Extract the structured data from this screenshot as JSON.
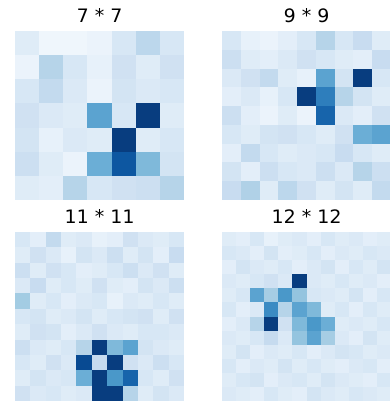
{
  "chart_data": [
    {
      "type": "heatmap",
      "title": "7 * 7",
      "colormap": "Blues",
      "values": [
        [
          0.12,
          0.04,
          0.04,
          0.06,
          0.16,
          0.28,
          0.16
        ],
        [
          0.06,
          0.3,
          0.16,
          0.08,
          0.2,
          0.12,
          0.2
        ],
        [
          0.16,
          0.26,
          0.14,
          0.06,
          0.18,
          0.14,
          0.16
        ],
        [
          0.2,
          0.14,
          0.12,
          0.55,
          0.16,
          0.95,
          0.12
        ],
        [
          0.18,
          0.08,
          0.14,
          0.12,
          0.95,
          0.12,
          0.16
        ],
        [
          0.22,
          0.12,
          0.06,
          0.5,
          0.85,
          0.45,
          0.18
        ],
        [
          0.12,
          0.1,
          0.3,
          0.16,
          0.2,
          0.22,
          0.3
        ]
      ]
    },
    {
      "type": "heatmap",
      "title": "9 * 9",
      "colormap": "Blues",
      "values": [
        [
          0.16,
          0.08,
          0.06,
          0.1,
          0.16,
          0.3,
          0.16,
          0.24,
          0.12
        ],
        [
          0.22,
          0.12,
          0.1,
          0.14,
          0.2,
          0.16,
          0.12,
          0.1,
          0.24
        ],
        [
          0.14,
          0.2,
          0.26,
          0.12,
          0.08,
          0.55,
          0.18,
          0.95,
          0.16
        ],
        [
          0.1,
          0.14,
          0.08,
          0.16,
          0.95,
          0.7,
          0.3,
          0.18,
          0.12
        ],
        [
          0.22,
          0.1,
          0.06,
          0.12,
          0.06,
          0.8,
          0.14,
          0.1,
          0.2
        ],
        [
          0.16,
          0.12,
          0.18,
          0.2,
          0.16,
          0.12,
          0.2,
          0.5,
          0.55
        ],
        [
          0.1,
          0.26,
          0.16,
          0.12,
          0.14,
          0.16,
          0.24,
          0.16,
          0.12
        ],
        [
          0.18,
          0.1,
          0.22,
          0.16,
          0.14,
          0.22,
          0.14,
          0.3,
          0.22
        ],
        [
          0.24,
          0.32,
          0.12,
          0.28,
          0.2,
          0.12,
          0.18,
          0.12,
          0.26
        ]
      ]
    },
    {
      "type": "heatmap",
      "title": "11 * 11",
      "colormap": "Blues",
      "values": [
        [
          0.16,
          0.1,
          0.26,
          0.12,
          0.14,
          0.08,
          0.1,
          0.2,
          0.14,
          0.12,
          0.16
        ],
        [
          0.12,
          0.2,
          0.14,
          0.08,
          0.18,
          0.14,
          0.22,
          0.12,
          0.18,
          0.1,
          0.24
        ],
        [
          0.22,
          0.12,
          0.2,
          0.16,
          0.1,
          0.12,
          0.16,
          0.22,
          0.14,
          0.2,
          0.12
        ],
        [
          0.14,
          0.24,
          0.12,
          0.16,
          0.12,
          0.2,
          0.12,
          0.1,
          0.18,
          0.14,
          0.22
        ],
        [
          0.36,
          0.12,
          0.16,
          0.1,
          0.14,
          0.16,
          0.08,
          0.14,
          0.12,
          0.16,
          0.12
        ],
        [
          0.16,
          0.18,
          0.12,
          0.14,
          0.18,
          0.12,
          0.16,
          0.18,
          0.2,
          0.12,
          0.2
        ],
        [
          0.12,
          0.2,
          0.18,
          0.1,
          0.14,
          0.2,
          0.14,
          0.12,
          0.16,
          0.16,
          0.14
        ],
        [
          0.22,
          0.14,
          0.12,
          0.16,
          0.3,
          0.95,
          0.45,
          0.55,
          0.18,
          0.14,
          0.12
        ],
        [
          0.16,
          0.12,
          0.2,
          0.14,
          0.9,
          0.25,
          0.95,
          0.2,
          0.14,
          0.22,
          0.16
        ],
        [
          0.12,
          0.18,
          0.14,
          0.16,
          0.5,
          0.95,
          0.6,
          0.8,
          0.16,
          0.12,
          0.2
        ],
        [
          0.2,
          0.14,
          0.16,
          0.12,
          0.14,
          0.95,
          0.95,
          0.3,
          0.12,
          0.18,
          0.14
        ]
      ]
    },
    {
      "type": "heatmap",
      "title": "12 * 12",
      "colormap": "Blues",
      "values": [
        [
          0.12,
          0.1,
          0.16,
          0.08,
          0.12,
          0.14,
          0.1,
          0.16,
          0.12,
          0.14,
          0.1,
          0.12
        ],
        [
          0.16,
          0.14,
          0.1,
          0.18,
          0.1,
          0.12,
          0.16,
          0.1,
          0.14,
          0.12,
          0.16,
          0.14
        ],
        [
          0.1,
          0.18,
          0.14,
          0.12,
          0.16,
          0.1,
          0.14,
          0.18,
          0.1,
          0.16,
          0.12,
          0.18
        ],
        [
          0.14,
          0.12,
          0.16,
          0.2,
          0.14,
          0.95,
          0.14,
          0.12,
          0.16,
          0.12,
          0.14,
          0.1
        ],
        [
          0.12,
          0.16,
          0.55,
          0.35,
          0.6,
          0.4,
          0.16,
          0.14,
          0.12,
          0.18,
          0.1,
          0.16
        ],
        [
          0.16,
          0.1,
          0.14,
          0.65,
          0.3,
          0.55,
          0.45,
          0.12,
          0.16,
          0.1,
          0.16,
          0.12
        ],
        [
          0.1,
          0.14,
          0.3,
          0.95,
          0.2,
          0.45,
          0.6,
          0.5,
          0.12,
          0.14,
          0.12,
          0.16
        ],
        [
          0.14,
          0.12,
          0.16,
          0.25,
          0.14,
          0.4,
          0.55,
          0.35,
          0.14,
          0.1,
          0.18,
          0.12
        ],
        [
          0.12,
          0.18,
          0.1,
          0.14,
          0.12,
          0.16,
          0.1,
          0.14,
          0.18,
          0.16,
          0.12,
          0.14
        ],
        [
          0.16,
          0.1,
          0.14,
          0.12,
          0.18,
          0.12,
          0.16,
          0.12,
          0.1,
          0.14,
          0.16,
          0.1
        ],
        [
          0.12,
          0.16,
          0.18,
          0.1,
          0.14,
          0.16,
          0.12,
          0.18,
          0.14,
          0.12,
          0.1,
          0.16
        ],
        [
          0.14,
          0.12,
          0.1,
          0.16,
          0.12,
          0.1,
          0.18,
          0.14,
          0.12,
          0.16,
          0.14,
          0.12
        ]
      ]
    }
  ]
}
